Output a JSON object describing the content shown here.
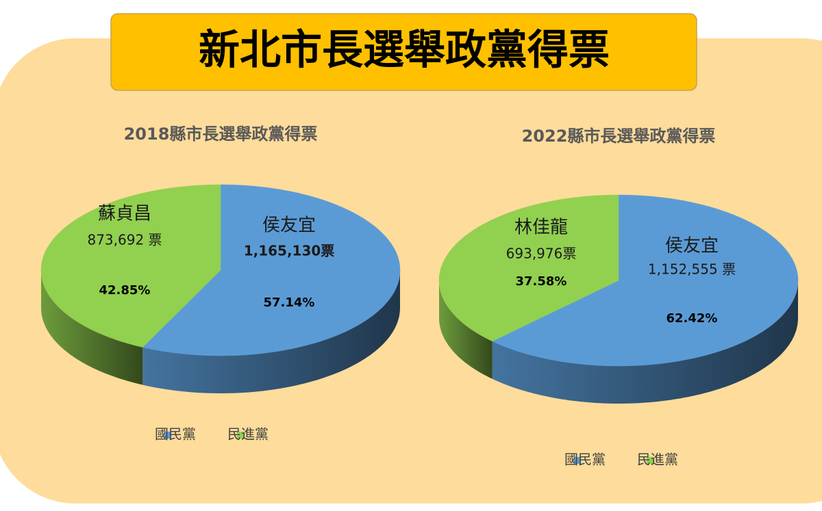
{
  "title": "新北市長選舉政黨得票",
  "chart_data": [
    {
      "type": "pie",
      "title": "2018縣市長選舉政黨得票",
      "categories": [
        "國民黨",
        "民進黨"
      ],
      "colors": [
        "#5b9bd5",
        "#92d050"
      ],
      "values": [
        57.14,
        42.85
      ],
      "value_labels": [
        "57.14%",
        "42.85%"
      ],
      "candidates": [
        "侯友宜",
        "蘇貞昌"
      ],
      "votes": [
        1165130,
        873692
      ],
      "vote_labels": [
        "1,165,130票",
        "873,692 票"
      ]
    },
    {
      "type": "pie",
      "title": "2022縣市長選舉政黨得票",
      "categories": [
        "國民黨",
        "民進黨"
      ],
      "colors": [
        "#5b9bd5",
        "#92d050"
      ],
      "values": [
        62.42,
        37.58
      ],
      "value_labels": [
        "62.42%",
        "37.58%"
      ],
      "candidates": [
        "侯友宜",
        "林佳龍"
      ],
      "votes": [
        1152555,
        693976
      ],
      "vote_labels": [
        "1,152,555 票",
        "693,976票"
      ]
    }
  ]
}
